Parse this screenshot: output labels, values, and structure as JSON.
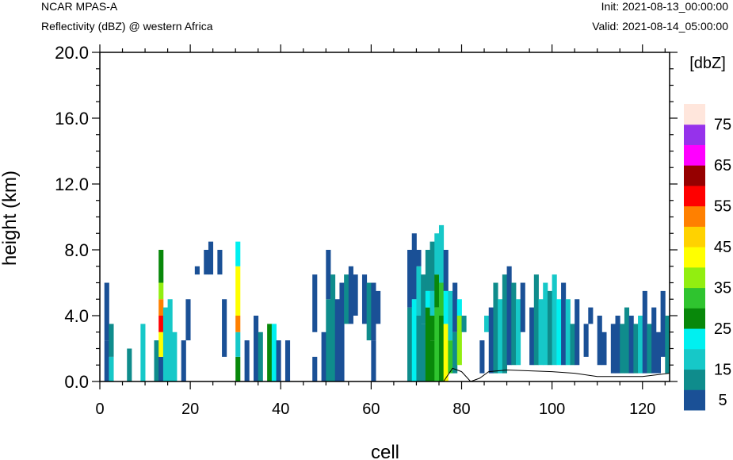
{
  "header": {
    "model": "NCAR MPAS-A",
    "field": "Reflectivity (dBZ) @ western Africa",
    "init": "Init: 2021-08-13_00:00:00",
    "valid": "Valid: 2021-08-14_05:00:00"
  },
  "chart_data": {
    "type": "heatmap",
    "title": "Reflectivity (dBZ) @ western Africa",
    "xlabel": "cell",
    "ylabel": "height (km)",
    "xlim": [
      0,
      126
    ],
    "ylim": [
      0,
      20
    ],
    "xticks": [
      "0",
      "20",
      "40",
      "60",
      "80",
      "100",
      "120"
    ],
    "yticks": [
      "0.0",
      "4.0",
      "8.0",
      "12.0",
      "16.0",
      "20.0"
    ],
    "colorbar": {
      "unit": "[dbZ]",
      "levels": [
        5,
        10,
        15,
        20,
        25,
        30,
        35,
        40,
        45,
        50,
        55,
        60,
        65,
        70,
        75
      ],
      "labels": [
        "5",
        "15",
        "25",
        "35",
        "45",
        "55",
        "65",
        "75"
      ],
      "colors": [
        "#1a5096",
        "#0f8c8c",
        "#16c8c8",
        "#00f0f0",
        "#08880a",
        "#2fc42f",
        "#92ee10",
        "#ffff00",
        "#ffd200",
        "#ff8000",
        "#ff0000",
        "#960000",
        "#ff00ff",
        "#9632eb",
        "#ffe6dc"
      ]
    },
    "ground_profile": [
      [
        76,
        0
      ],
      [
        78,
        0.8
      ],
      [
        80,
        0.6
      ],
      [
        82,
        0
      ],
      [
        84,
        0.2
      ],
      [
        86,
        0.6
      ],
      [
        90,
        0.7
      ],
      [
        100,
        0.6
      ],
      [
        105,
        0.5
      ],
      [
        110,
        0.3
      ],
      [
        120,
        0.3
      ],
      [
        126,
        0.5
      ]
    ],
    "cells": [
      [
        1,
        0,
        2.5,
        0
      ],
      [
        1,
        2.5,
        6,
        0
      ],
      [
        2,
        0,
        1.5,
        2
      ],
      [
        2,
        1.5,
        3.5,
        1
      ],
      [
        6,
        0,
        2,
        1
      ],
      [
        9,
        0,
        3.5,
        2
      ],
      [
        12,
        0,
        2.5,
        1
      ],
      [
        13,
        0,
        1.5,
        0
      ],
      [
        13,
        1.5,
        3,
        7
      ],
      [
        13,
        3,
        4,
        10
      ],
      [
        13,
        4,
        5,
        9
      ],
      [
        13,
        5,
        6,
        6
      ],
      [
        13,
        6,
        8,
        4
      ],
      [
        14,
        0,
        4.5,
        2
      ],
      [
        15,
        0,
        5,
        2
      ],
      [
        16,
        0,
        3,
        2
      ],
      [
        18,
        0,
        2.5,
        0
      ],
      [
        19,
        2.5,
        5,
        0
      ],
      [
        21,
        6.5,
        7,
        0
      ],
      [
        23,
        6.5,
        8,
        0
      ],
      [
        24,
        6.5,
        8.5,
        0
      ],
      [
        26,
        6.5,
        8,
        0
      ],
      [
        27,
        1.5,
        5,
        0
      ],
      [
        30,
        0,
        1.5,
        4
      ],
      [
        30,
        1.5,
        3,
        2
      ],
      [
        30,
        3,
        4,
        9
      ],
      [
        30,
        4,
        7,
        7
      ],
      [
        30,
        7,
        8.5,
        3
      ],
      [
        32,
        0,
        2.5,
        0
      ],
      [
        34,
        0,
        4,
        0
      ],
      [
        35,
        0,
        3,
        1
      ],
      [
        37,
        0,
        3.5,
        4
      ],
      [
        38,
        0,
        3.5,
        3
      ],
      [
        39,
        0,
        2.5,
        0
      ],
      [
        41,
        0,
        2.5,
        0
      ],
      [
        47,
        0,
        1.5,
        0
      ],
      [
        47,
        3,
        6.5,
        0
      ],
      [
        49,
        0,
        3,
        0
      ],
      [
        50,
        0,
        5,
        1
      ],
      [
        50,
        5,
        8,
        0
      ],
      [
        51,
        0,
        6.5,
        1
      ],
      [
        52,
        0,
        5,
        0
      ],
      [
        53,
        0,
        6,
        0
      ],
      [
        54,
        3.5,
        6.5,
        1
      ],
      [
        55,
        3.5,
        7,
        0
      ],
      [
        56,
        4,
        6.5,
        0
      ],
      [
        58,
        3.5,
        6.5,
        0
      ],
      [
        59,
        2.5,
        6,
        1
      ],
      [
        60,
        0,
        2.5,
        0
      ],
      [
        60,
        2.5,
        6,
        0
      ],
      [
        61,
        3.5,
        5.5,
        0
      ],
      [
        68,
        0,
        4.5,
        1
      ],
      [
        68,
        4.5,
        8,
        0
      ],
      [
        69,
        0,
        5,
        3
      ],
      [
        69,
        5,
        9,
        0
      ],
      [
        70,
        0,
        4,
        1
      ],
      [
        70,
        4,
        7,
        2
      ],
      [
        70,
        7,
        8,
        0
      ],
      [
        71,
        0,
        3.5,
        1
      ],
      [
        71,
        3.5,
        6.5,
        1
      ],
      [
        72,
        0,
        2,
        4
      ],
      [
        72,
        2,
        4.5,
        4
      ],
      [
        72,
        4.5,
        5.5,
        3
      ],
      [
        72,
        5.5,
        8,
        1
      ],
      [
        73,
        0,
        2.5,
        4
      ],
      [
        73,
        2.5,
        4,
        4
      ],
      [
        73,
        4,
        5.5,
        2
      ],
      [
        73,
        5.5,
        8.5,
        1
      ],
      [
        74,
        0,
        4.5,
        5
      ],
      [
        74,
        4.5,
        6.5,
        4
      ],
      [
        74,
        6.5,
        9,
        2
      ],
      [
        75,
        0,
        4,
        4
      ],
      [
        75,
        4,
        6,
        5
      ],
      [
        75,
        6,
        9.5,
        2
      ],
      [
        76,
        0,
        3.5,
        7
      ],
      [
        76,
        3.5,
        5.5,
        3
      ],
      [
        76,
        5.5,
        8,
        0
      ],
      [
        77,
        0.5,
        2.5,
        5
      ],
      [
        77,
        2.5,
        5.5,
        2
      ],
      [
        78,
        0.5,
        3,
        1
      ],
      [
        78,
        3,
        6,
        0
      ],
      [
        79,
        1,
        4,
        6
      ],
      [
        79,
        4,
        5,
        3
      ],
      [
        80,
        3,
        4,
        1
      ],
      [
        84,
        0.5,
        2.5,
        0
      ],
      [
        85,
        3,
        4,
        2
      ],
      [
        86,
        0.5,
        4.5,
        0
      ],
      [
        87,
        0.5,
        6,
        1
      ],
      [
        88,
        0.5,
        5,
        2
      ],
      [
        89,
        0.5,
        6.5,
        1
      ],
      [
        90,
        1,
        7,
        0
      ],
      [
        91,
        1,
        6,
        1
      ],
      [
        92,
        1,
        5,
        2
      ],
      [
        93,
        3,
        6,
        0
      ],
      [
        95,
        1,
        4.5,
        0
      ],
      [
        96,
        1,
        6.5,
        1
      ],
      [
        97,
        1,
        5,
        2
      ],
      [
        98,
        1,
        6,
        2
      ],
      [
        99,
        1,
        5.5,
        1
      ],
      [
        100,
        1,
        6.5,
        2
      ],
      [
        101,
        1,
        5,
        3
      ],
      [
        102,
        1,
        6,
        0
      ],
      [
        103,
        1,
        5,
        2
      ],
      [
        104,
        1,
        3.5,
        1
      ],
      [
        105,
        1,
        5,
        0
      ],
      [
        107,
        1.5,
        3.5,
        0
      ],
      [
        108,
        3.5,
        4.5,
        0
      ],
      [
        110,
        1,
        4,
        0
      ],
      [
        111,
        1,
        3,
        0
      ],
      [
        113,
        0.5,
        3.5,
        0
      ],
      [
        114,
        0.5,
        4,
        0
      ],
      [
        115,
        0.5,
        3.5,
        1
      ],
      [
        116,
        0.5,
        4.5,
        1
      ],
      [
        117,
        0.5,
        4,
        0
      ],
      [
        118,
        0.5,
        3.5,
        1
      ],
      [
        119,
        0.5,
        4,
        2
      ],
      [
        120,
        0.5,
        5.5,
        0
      ],
      [
        121,
        0.5,
        3.5,
        1
      ],
      [
        122,
        0.5,
        4.5,
        0
      ],
      [
        123,
        0.5,
        3,
        0
      ],
      [
        124,
        1.5,
        5.5,
        0
      ],
      [
        125,
        0.5,
        4,
        1
      ]
    ]
  }
}
